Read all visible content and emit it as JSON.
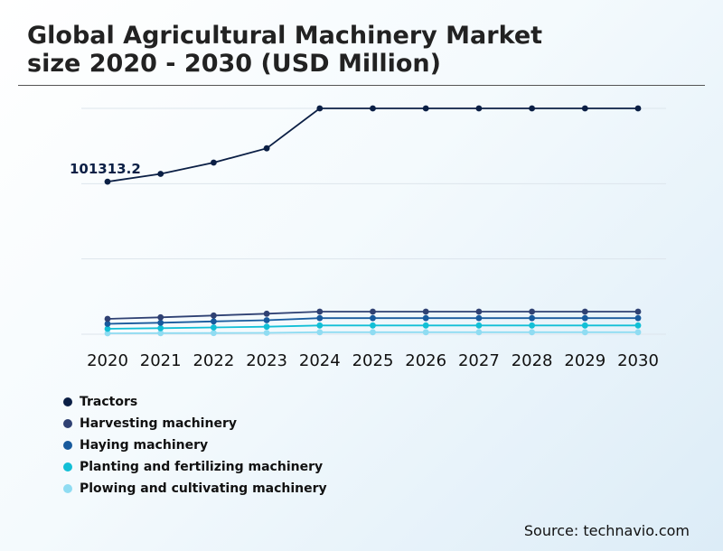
{
  "title_lines": [
    "Global Agricultural Machinery Market",
    "size 2020 - 2030 (USD Million)"
  ],
  "source": "Source: technavio.com",
  "chart_data": {
    "type": "line",
    "title": "Global Agricultural Machinery Market size 2020 - 2030 (USD Million)",
    "x": [
      "2020",
      "2021",
      "2022",
      "2023",
      "2024",
      "2025",
      "2026",
      "2027",
      "2028",
      "2029",
      "2030"
    ],
    "ylim": [
      0,
      150000
    ],
    "grid": true,
    "legend_position": "bottom-left",
    "annotation": {
      "series": 0,
      "index": 0,
      "text": "101313.2"
    },
    "series": [
      {
        "name": "Tractors",
        "color": "#0b1f45",
        "values": [
          101313.2,
          106500,
          114000,
          123500,
          150000,
          150000,
          150000,
          150000,
          150000,
          150000,
          150000
        ]
      },
      {
        "name": "Harvesting machinery",
        "color": "#2f4173",
        "values": [
          10200,
          11200,
          12400,
          13600,
          15000,
          15000,
          15000,
          15000,
          15000,
          15000,
          15000
        ]
      },
      {
        "name": "Haying machinery",
        "color": "#185a9d",
        "values": [
          6900,
          7600,
          8500,
          9300,
          10700,
          10700,
          10700,
          10700,
          10700,
          10700,
          10700
        ]
      },
      {
        "name": "Planting and fertilizing machinery",
        "color": "#12bfd6",
        "values": [
          3600,
          4000,
          4500,
          5000,
          5800,
          5800,
          5800,
          5800,
          5800,
          5800,
          5800
        ]
      },
      {
        "name": "Plowing and cultivating machinery",
        "color": "#8fdcf2",
        "values": [
          600,
          700,
          800,
          900,
          1300,
          1300,
          1300,
          1300,
          1300,
          1300,
          1300
        ]
      }
    ]
  }
}
